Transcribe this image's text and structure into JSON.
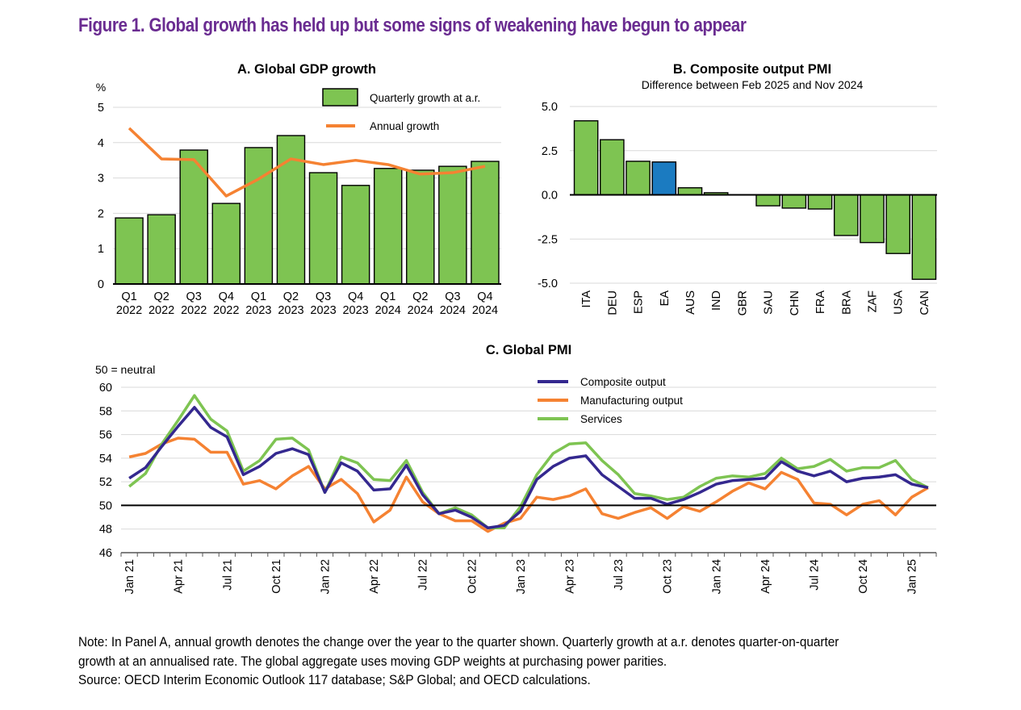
{
  "figure_title": "Figure 1. Global growth has held up but some signs of weakening have begun to appear",
  "notes": [
    "Note: In Panel A, annual growth denotes the change over the year to the quarter shown. Quarterly growth at a.r. denotes quarter-on-quarter",
    "growth at an annualised rate. The global aggregate uses moving GDP weights at purchasing power parities.",
    "Source: OECD Interim Economic Outlook 117 database; S&P Global; and OECD calculations."
  ],
  "colors": {
    "title": "#6a2c91",
    "bar_green": "#7ec452",
    "bar_blue": "#1b7bc1",
    "orange": "#f58232",
    "navy": "#34288f",
    "services_green": "#7ec452",
    "grid": "#d9d9d9"
  },
  "chart_data": [
    {
      "id": "panelA",
      "type": "bar",
      "title": "A. Global GDP growth",
      "ylabel": "%",
      "ylim": [
        0,
        5
      ],
      "yticks": [
        "0",
        "1",
        "2",
        "3",
        "4",
        "5"
      ],
      "grid": true,
      "legend_position": "top-right",
      "categories": [
        [
          "Q1",
          "2022"
        ],
        [
          "Q2",
          "2022"
        ],
        [
          "Q3",
          "2022"
        ],
        [
          "Q4",
          "2022"
        ],
        [
          "Q1",
          "2023"
        ],
        [
          "Q2",
          "2023"
        ],
        [
          "Q3",
          "2023"
        ],
        [
          "Q4",
          "2023"
        ],
        [
          "Q1",
          "2024"
        ],
        [
          "Q2",
          "2024"
        ],
        [
          "Q3",
          "2024"
        ],
        [
          "Q4",
          "2024"
        ]
      ],
      "series": [
        {
          "name": "Quarterly growth at a.r.",
          "kind": "bar",
          "values": [
            1.87,
            1.96,
            3.79,
            2.28,
            3.86,
            4.2,
            3.15,
            2.79,
            3.27,
            3.22,
            3.33,
            3.47
          ]
        },
        {
          "name": "Annual growth",
          "kind": "line",
          "values": [
            4.41,
            3.54,
            3.52,
            2.49,
            2.97,
            3.54,
            3.38,
            3.5,
            3.38,
            3.11,
            3.15,
            3.33
          ]
        }
      ]
    },
    {
      "id": "panelB",
      "type": "bar",
      "title": "B. Composite output PMI",
      "subtitle": "Difference between Feb 2025 and Nov 2024",
      "ylim": [
        -5,
        5
      ],
      "yticks": [
        "-5.0",
        "-2.5",
        "0.0",
        "2.5",
        "5.0"
      ],
      "grid": true,
      "categories": [
        "ITA",
        "DEU",
        "ESP",
        "EA",
        "AUS",
        "IND",
        "GBR",
        "SAU",
        "CHN",
        "FRA",
        "BRA",
        "ZAF",
        "USA",
        "CAN"
      ],
      "values": [
        4.19,
        3.12,
        1.9,
        1.86,
        0.4,
        0.12,
        0.0,
        -0.62,
        -0.75,
        -0.8,
        -2.3,
        -2.7,
        -3.32,
        -4.78
      ],
      "highlight": [
        "EA"
      ]
    },
    {
      "id": "panelC",
      "type": "line",
      "title": "C. Global PMI",
      "ylabel": "50 = neutral",
      "ylim": [
        46,
        60
      ],
      "yticks": [
        "46",
        "48",
        "50",
        "52",
        "54",
        "56",
        "58",
        "60"
      ],
      "reference_line": 50,
      "grid": true,
      "legend_position": "top-center",
      "x_start": "Jan 21",
      "x_end": "Feb 25",
      "xtick_labels": [
        "Jan 21",
        "Apr 21",
        "Jul 21",
        "Oct 21",
        "Jan 22",
        "Apr 22",
        "Jul 22",
        "Oct 22",
        "Jan 23",
        "Apr 23",
        "Jul 23",
        "Oct 23",
        "Jan 24",
        "Apr 24",
        "Jul 24",
        "Oct 24",
        "Jan 25"
      ],
      "series": [
        {
          "name": "Composite output",
          "values": [
            52.3,
            53.2,
            55.0,
            56.7,
            58.3,
            56.6,
            55.8,
            52.6,
            53.3,
            54.4,
            54.8,
            54.3,
            51.1,
            53.6,
            52.9,
            51.3,
            51.4,
            53.4,
            50.9,
            49.3,
            49.6,
            49.0,
            48.1,
            48.3,
            49.5,
            52.2,
            53.3,
            54.0,
            54.2,
            52.6,
            51.6,
            50.6,
            50.6,
            50.1,
            50.5,
            51.1,
            51.8,
            52.1,
            52.2,
            52.3,
            53.7,
            52.9,
            52.5,
            52.9,
            52.0,
            52.3,
            52.4,
            52.6,
            51.8,
            51.5
          ]
        },
        {
          "name": "Manufacturing output",
          "values": [
            54.1,
            54.4,
            55.2,
            55.7,
            55.6,
            54.5,
            54.5,
            51.8,
            52.1,
            51.4,
            52.5,
            53.3,
            51.4,
            52.2,
            51.0,
            48.6,
            49.6,
            52.4,
            50.3,
            49.3,
            48.7,
            48.7,
            47.8,
            48.5,
            48.9,
            50.7,
            50.5,
            50.8,
            51.4,
            49.3,
            48.9,
            49.4,
            49.8,
            48.9,
            49.9,
            49.5,
            50.3,
            51.2,
            51.9,
            51.4,
            52.8,
            52.2,
            50.2,
            50.1,
            49.2,
            50.1,
            50.4,
            49.2,
            50.7,
            51.5
          ]
        },
        {
          "name": "Services",
          "values": [
            51.6,
            52.7,
            55.2,
            57.2,
            59.3,
            57.3,
            56.3,
            52.9,
            53.8,
            55.6,
            55.7,
            54.7,
            51.1,
            54.1,
            53.6,
            52.2,
            52.1,
            53.8,
            51.1,
            49.3,
            49.8,
            49.2,
            48.1,
            48.1,
            49.9,
            52.6,
            54.4,
            55.2,
            55.3,
            53.8,
            52.6,
            51.0,
            50.8,
            50.5,
            50.7,
            51.6,
            52.3,
            52.5,
            52.4,
            52.7,
            54.0,
            53.1,
            53.3,
            53.9,
            52.9,
            53.2,
            53.2,
            53.8,
            52.2,
            51.5
          ]
        }
      ]
    }
  ]
}
